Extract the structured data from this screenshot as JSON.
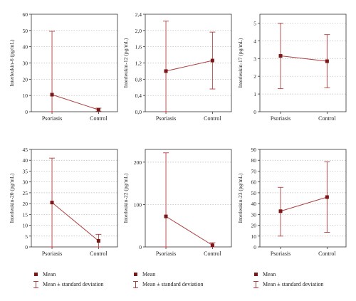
{
  "colors": {
    "line": "#b04040",
    "marker": "#7a1717",
    "grid": "#b8b8b8",
    "axis": "#333333"
  },
  "chart_data": [
    {
      "type": "line",
      "ylabel": "Interleukin-6 (pg/mL)",
      "categories": [
        "Psoriasis",
        "Control"
      ],
      "ylim": [
        0,
        60
      ],
      "yticks": [
        "0",
        "10",
        "20",
        "30",
        "40",
        "50",
        "60"
      ],
      "tick_values": [
        0,
        10,
        20,
        30,
        40,
        50,
        60
      ],
      "series": [
        {
          "mean": [
            10.5,
            1.2
          ],
          "lower": [
            0,
            0.3
          ],
          "upper": [
            49.5,
            2.2
          ]
        }
      ]
    },
    {
      "type": "line",
      "ylabel": "Interleukin-12 (pg/mL)",
      "categories": [
        "Psoriasis",
        "Control"
      ],
      "ylim": [
        0,
        2.4
      ],
      "yticks": [
        "0,0",
        "0,4",
        "0,8",
        "1,2",
        "1,6",
        "2,0",
        "2,4"
      ],
      "tick_values": [
        0,
        0.4,
        0.8,
        1.2,
        1.6,
        2.0,
        2.4
      ],
      "series": [
        {
          "mean": [
            1.0,
            1.26
          ],
          "lower": [
            0,
            0.56
          ],
          "upper": [
            2.23,
            1.96
          ]
        }
      ]
    },
    {
      "type": "line",
      "ylabel": "Interleukin-17 (pg/mL)",
      "categories": [
        "Psoriasis",
        "Control"
      ],
      "ylim": [
        0,
        5.5
      ],
      "yticks": [
        "0",
        "1",
        "2",
        "3",
        "4",
        "5"
      ],
      "tick_values": [
        0,
        1,
        2,
        3,
        4,
        5
      ],
      "series": [
        {
          "mean": [
            3.15,
            2.85
          ],
          "lower": [
            1.3,
            1.35
          ],
          "upper": [
            5.0,
            4.35
          ]
        }
      ]
    },
    {
      "type": "line",
      "ylabel": "Interleukin-20 (pg/mL)",
      "categories": [
        "Psoriasis",
        "Control"
      ],
      "ylim": [
        0,
        45
      ],
      "yticks": [
        "0",
        "5",
        "10",
        "15",
        "20",
        "25",
        "30",
        "35",
        "40",
        "45"
      ],
      "tick_values": [
        0,
        5,
        10,
        15,
        20,
        25,
        30,
        35,
        40,
        45
      ],
      "series": [
        {
          "mean": [
            20.5,
            2.8
          ],
          "lower": [
            0,
            0
          ],
          "upper": [
            41,
            5.8
          ]
        }
      ]
    },
    {
      "type": "line",
      "ylabel": "Interleukin-22 (pg/mL)",
      "categories": [
        "Psoriasis",
        "Control"
      ],
      "ylim": [
        0,
        230
      ],
      "yticks": [
        "0",
        "100",
        "200"
      ],
      "tick_values": [
        0,
        100,
        200
      ],
      "series": [
        {
          "mean": [
            72,
            4
          ],
          "lower": [
            0,
            0
          ],
          "upper": [
            222,
            10
          ]
        }
      ]
    },
    {
      "type": "line",
      "ylabel": "Interleukin-23 (pg/mL)",
      "categories": [
        "Psoriasis",
        "Control"
      ],
      "ylim": [
        0,
        90
      ],
      "yticks": [
        "0",
        "10",
        "20",
        "30",
        "40",
        "50",
        "60",
        "70",
        "80",
        "90"
      ],
      "tick_values": [
        0,
        10,
        20,
        30,
        40,
        50,
        60,
        70,
        80,
        90
      ],
      "series": [
        {
          "mean": [
            33,
            46
          ],
          "lower": [
            10,
            13.5
          ],
          "upper": [
            55,
            78.5
          ]
        }
      ]
    }
  ],
  "legend": {
    "mean_label": "Mean",
    "sd_label": "Mean ± standard deviation"
  }
}
